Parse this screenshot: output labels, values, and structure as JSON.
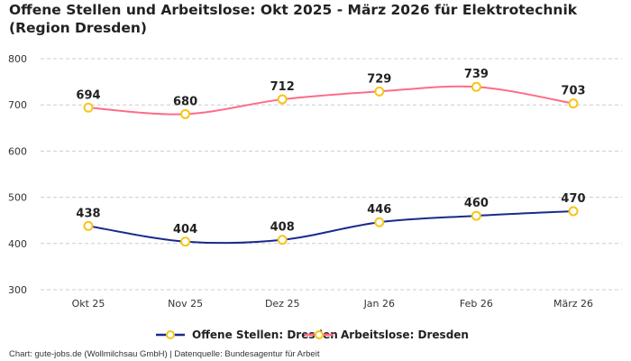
{
  "title": "Offene Stellen und Arbeitslose: Okt 2025 - März 2026 für Elektrotechnik (Region Dresden)",
  "footer": "Chart: gute-jobs.de (Wollmilchsau GmbH) | Datenquelle: Bundesagentur für Arbeit",
  "chart_data": {
    "type": "line",
    "title": "Offene Stellen und Arbeitslose: Okt 2025 - März 2026 für Elektrotechnik (Region Dresden)",
    "categories": [
      "Okt 25",
      "Nov 25",
      "Dez 25",
      "Jan 26",
      "Feb 26",
      "März 26"
    ],
    "ylim": [
      300,
      800
    ],
    "yticks": [
      300,
      400,
      500,
      600,
      700,
      800
    ],
    "grid": true,
    "legend_position": "bottom",
    "marker_color": "#f5c518",
    "series": [
      {
        "name": "Offene Stellen: Dresden",
        "color": "#1a2a8c",
        "values": [
          438,
          404,
          408,
          446,
          460,
          470
        ]
      },
      {
        "name": "Arbeitslose: Dresden",
        "color": "#ff6b86",
        "values": [
          694,
          680,
          712,
          729,
          739,
          703
        ]
      }
    ]
  }
}
